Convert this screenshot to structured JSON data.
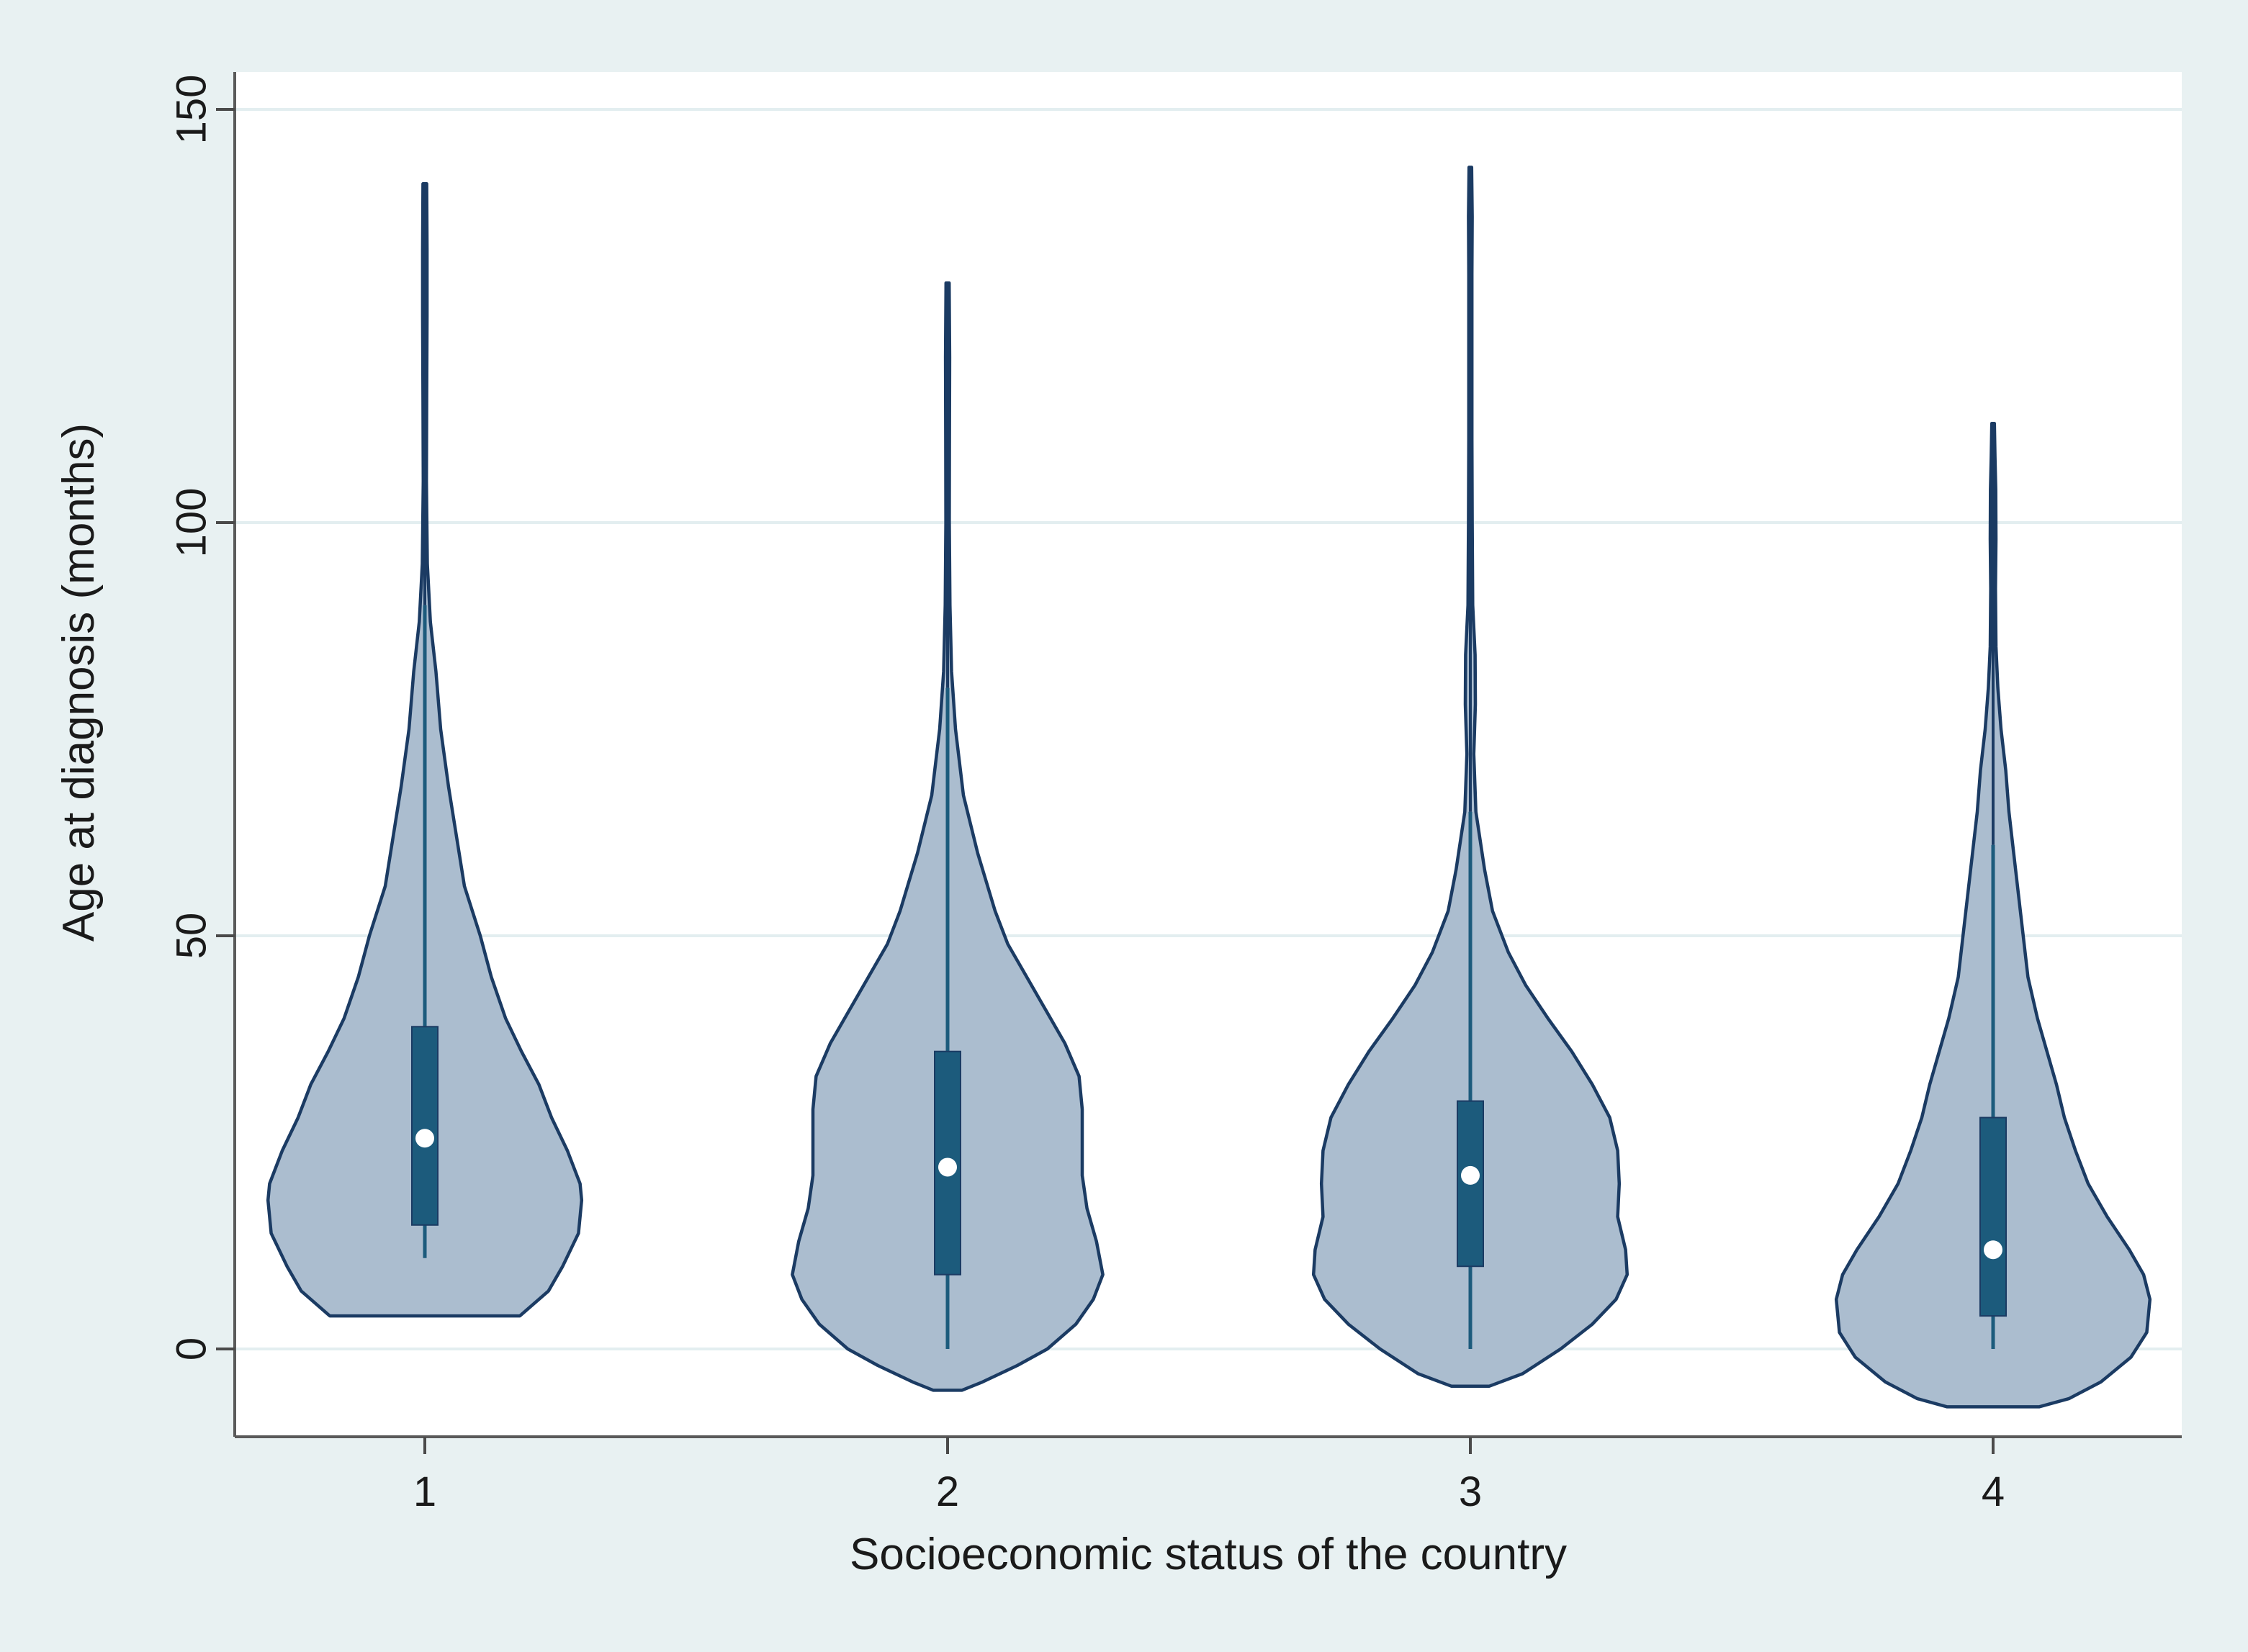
{
  "chart_data": {
    "type": "violin",
    "xlabel": "Socioeconomic status of the country",
    "ylabel": "Age at diagnosis (months)",
    "categories": [
      "1",
      "2",
      "3",
      "4"
    ],
    "yticks": [
      0,
      50,
      100,
      150
    ],
    "ylim": [
      -11,
      154
    ],
    "grid": true,
    "colors": {
      "outer_background": "#e8f1f2",
      "plot_background": "#ffffff",
      "gridline": "#e3eef0",
      "violin_fill": "#abbdcf",
      "violin_outline": "#1b3b63",
      "box_fill": "#1c5b7c",
      "median_marker": "#ffffff"
    },
    "series": [
      {
        "category": "1",
        "min": 11,
        "q1": 15,
        "median": 25.5,
        "q3": 39,
        "upper_whisker": 90,
        "max": 141,
        "density": [
          [
            4,
            0.6
          ],
          [
            7,
            0.78
          ],
          [
            10,
            0.87
          ],
          [
            14,
            0.97
          ],
          [
            18,
            0.99
          ],
          [
            20,
            0.98
          ],
          [
            24,
            0.9
          ],
          [
            28,
            0.8
          ],
          [
            32,
            0.72
          ],
          [
            36,
            0.61
          ],
          [
            40,
            0.51
          ],
          [
            45,
            0.42
          ],
          [
            50,
            0.35
          ],
          [
            56,
            0.25
          ],
          [
            62,
            0.2
          ],
          [
            68,
            0.15
          ],
          [
            75,
            0.1
          ],
          [
            82,
            0.07
          ],
          [
            88,
            0.035
          ],
          [
            95,
            0.016
          ],
          [
            105,
            0.01
          ],
          [
            115,
            0.012
          ],
          [
            125,
            0.014
          ],
          [
            133,
            0.014
          ],
          [
            141,
            0.012
          ]
        ]
      },
      {
        "category": "2",
        "min": 0,
        "q1": 9,
        "median": 22,
        "q3": 36,
        "upper_whisker": 80,
        "max": 129,
        "density": [
          [
            -5,
            0.09
          ],
          [
            -4,
            0.22
          ],
          [
            -2,
            0.44
          ],
          [
            0,
            0.63
          ],
          [
            3,
            0.81
          ],
          [
            6,
            0.92
          ],
          [
            9,
            0.98
          ],
          [
            13,
            0.94
          ],
          [
            17,
            0.88
          ],
          [
            21,
            0.85
          ],
          [
            25,
            0.85
          ],
          [
            29,
            0.85
          ],
          [
            33,
            0.83
          ],
          [
            37,
            0.74
          ],
          [
            41,
            0.62
          ],
          [
            45,
            0.5
          ],
          [
            49,
            0.38
          ],
          [
            53,
            0.3
          ],
          [
            60,
            0.19
          ],
          [
            67,
            0.1
          ],
          [
            75,
            0.05
          ],
          [
            82,
            0.025
          ],
          [
            90,
            0.015
          ],
          [
            100,
            0.011
          ],
          [
            110,
            0.012
          ],
          [
            120,
            0.013
          ],
          [
            129,
            0.01
          ]
        ]
      },
      {
        "category": "3",
        "min": 0,
        "q1": 10,
        "median": 21,
        "q3": 30,
        "upper_whisker": 65,
        "max": 143,
        "density": [
          [
            -4.5,
            0.12
          ],
          [
            -3,
            0.33
          ],
          [
            0,
            0.57
          ],
          [
            3,
            0.77
          ],
          [
            6,
            0.92
          ],
          [
            9,
            0.99
          ],
          [
            12,
            0.98
          ],
          [
            16,
            0.93
          ],
          [
            20,
            0.94
          ],
          [
            24,
            0.93
          ],
          [
            28,
            0.88
          ],
          [
            32,
            0.77
          ],
          [
            36,
            0.64
          ],
          [
            40,
            0.49
          ],
          [
            44,
            0.35
          ],
          [
            48,
            0.24
          ],
          [
            53,
            0.14
          ],
          [
            58,
            0.09
          ],
          [
            65,
            0.035
          ],
          [
            72,
            0.022
          ],
          [
            78,
            0.032
          ],
          [
            84,
            0.03
          ],
          [
            90,
            0.015
          ],
          [
            100,
            0.012
          ],
          [
            110,
            0.01
          ],
          [
            120,
            0.01
          ],
          [
            130,
            0.01
          ],
          [
            137,
            0.012
          ],
          [
            143,
            0.008
          ]
        ]
      },
      {
        "category": "4",
        "min": 0,
        "q1": 4,
        "median": 12,
        "q3": 28,
        "upper_whisker": 61,
        "max": 112,
        "density": [
          [
            -7,
            0.29
          ],
          [
            -6,
            0.48
          ],
          [
            -4,
            0.68
          ],
          [
            -1,
            0.87
          ],
          [
            2,
            0.97
          ],
          [
            6,
            0.99
          ],
          [
            9,
            0.95
          ],
          [
            12,
            0.86
          ],
          [
            16,
            0.72
          ],
          [
            20,
            0.6
          ],
          [
            24,
            0.52
          ],
          [
            28,
            0.45
          ],
          [
            32,
            0.4
          ],
          [
            36,
            0.34
          ],
          [
            40,
            0.28
          ],
          [
            45,
            0.22
          ],
          [
            50,
            0.19
          ],
          [
            55,
            0.16
          ],
          [
            60,
            0.13
          ],
          [
            65,
            0.1
          ],
          [
            70,
            0.08
          ],
          [
            75,
            0.05
          ],
          [
            80,
            0.03
          ],
          [
            85,
            0.018
          ],
          [
            92,
            0.015
          ],
          [
            98,
            0.018
          ],
          [
            104,
            0.017
          ],
          [
            108,
            0.012
          ],
          [
            112,
            0.008
          ]
        ]
      }
    ]
  }
}
